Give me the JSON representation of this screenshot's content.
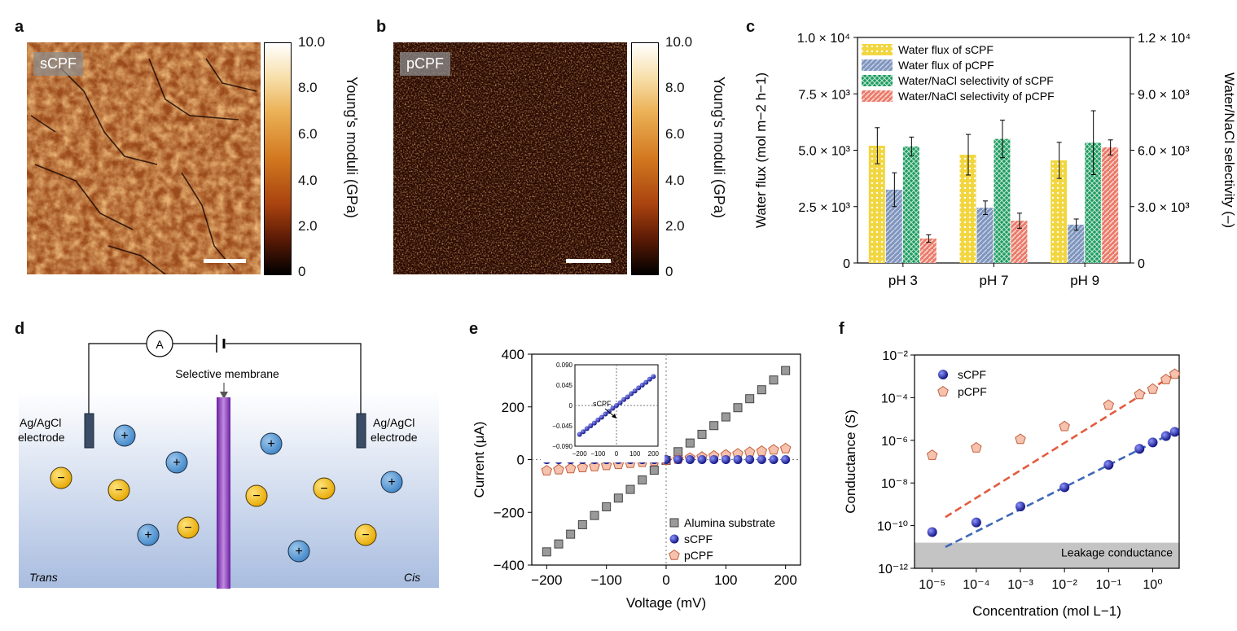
{
  "panels": {
    "a": "a",
    "b": "b",
    "c": "c",
    "d": "d",
    "e": "e",
    "f": "f"
  },
  "afm": {
    "a_label": "sCPF",
    "b_label": "pCPF",
    "colorbar_ticks": [
      "10.0",
      "8.0",
      "6.0",
      "4.0",
      "2.0",
      "0"
    ],
    "colorbar_title": "Young's moduli (GPa)"
  },
  "panel_d": {
    "ammeter": "A",
    "membrane_label": "Selective membrane",
    "left_electrode": [
      "Ag/AgCl",
      "electrode"
    ],
    "right_electrode": [
      "Ag/AgCl",
      "electrode"
    ],
    "left_side": "Trans",
    "right_side": "Cis",
    "plus": "+",
    "minus": "−"
  },
  "chart_data": [
    {
      "id": "c",
      "type": "bar",
      "categories": [
        "pH 3",
        "pH 7",
        "pH 9"
      ],
      "ylabel_left": "Water flux (mol m−2 h−1)",
      "ylabel_right": "Water/NaCl selectivity (–)",
      "ylim_left": [
        0,
        10000
      ],
      "ylim_right": [
        0,
        12000
      ],
      "left_ticks": [
        "0",
        "2.5 × 10³",
        "5.0 × 10³",
        "7.5 × 10³",
        "1.0 × 10⁴"
      ],
      "right_ticks": [
        "0",
        "3.0 × 10³",
        "6.0 × 10³",
        "9.0 × 10³",
        "1.2 × 10⁴"
      ],
      "series": [
        {
          "name": "Water flux of sCPF",
          "axis": "left",
          "values": [
            5200,
            4800,
            4550
          ],
          "err": [
            800,
            900,
            800
          ],
          "color": "#f2d640"
        },
        {
          "name": "Water flux of pCPF",
          "axis": "left",
          "values": [
            3250,
            2450,
            1700
          ],
          "err": [
            750,
            300,
            250
          ],
          "color": "#7f95be"
        },
        {
          "name": "Water/NaCl selectivity of sCPF",
          "axis": "right",
          "values": [
            6200,
            6600,
            6400
          ],
          "err": [
            500,
            1000,
            1700
          ],
          "color": "#1e9b62"
        },
        {
          "name": "Water/NaCl selectivity of pCPF",
          "axis": "right",
          "values": [
            1300,
            2250,
            6150
          ],
          "err": [
            200,
            400,
            400
          ],
          "color": "#ea7a6a"
        }
      ]
    },
    {
      "id": "e",
      "type": "scatter",
      "xlabel": "Voltage (mV)",
      "ylabel": "Current (μA)",
      "xlim": [
        -225,
        225
      ],
      "ylim": [
        -400,
        400
      ],
      "xticks": [
        "−200",
        "−100",
        "0",
        "100",
        "200"
      ],
      "yticks": [
        "−400",
        "−200",
        "0",
        "200",
        "400"
      ],
      "x": [
        -200,
        -180,
        -160,
        -140,
        -120,
        -100,
        -80,
        -60,
        -40,
        -20,
        0,
        20,
        40,
        60,
        80,
        100,
        120,
        140,
        160,
        180,
        200
      ],
      "series": [
        {
          "name": "Alumina substrate",
          "marker": "square",
          "color": "#9a9a9a",
          "values": [
            -350,
            -320,
            -283,
            -247,
            -212,
            -179,
            -146,
            -113,
            -77,
            -40,
            -3,
            30,
            63,
            96,
            129,
            162,
            197,
            231,
            265,
            302,
            338
          ]
        },
        {
          "name": "sCPF",
          "marker": "sphere",
          "color": "#1a1ba0",
          "values": [
            0,
            0,
            0,
            0,
            0,
            0,
            0,
            0,
            0,
            0,
            0,
            0,
            0,
            0,
            0,
            0,
            0,
            0,
            0,
            0,
            0
          ]
        },
        {
          "name": "pCPF",
          "marker": "pentagon",
          "color": "#f6c2ae",
          "values": [
            -42,
            -38,
            -34,
            -30,
            -26,
            -22,
            -18,
            -14,
            -10,
            -6,
            -2,
            2,
            6,
            10,
            14,
            18,
            22,
            28,
            32,
            37,
            42
          ]
        }
      ],
      "inset": {
        "label": "sCPF",
        "xticks": [
          "−200",
          "−100",
          "0",
          "100",
          "200"
        ],
        "yticks": [
          "0.090",
          "0.045",
          "0",
          "−0.045",
          "−0.090"
        ],
        "xlim": [
          -225,
          225
        ],
        "ylim": [
          -0.09,
          0.09
        ],
        "x": [
          -200,
          -180,
          -160,
          -140,
          -120,
          -100,
          -80,
          -60,
          -40,
          -20,
          0,
          20,
          40,
          60,
          80,
          100,
          120,
          140,
          160,
          180,
          200
        ],
        "values": [
          -0.064,
          -0.058,
          -0.051,
          -0.045,
          -0.039,
          -0.032,
          -0.026,
          -0.019,
          -0.013,
          -0.006,
          0,
          0.006,
          0.013,
          0.019,
          0.026,
          0.032,
          0.039,
          0.045,
          0.051,
          0.058,
          0.064
        ]
      }
    },
    {
      "id": "f",
      "type": "scatter",
      "xlabel": "Concentration (mol L−1)",
      "ylabel": "Conductance (S)",
      "xscale": "log",
      "yscale": "log",
      "xlim_exp": [
        -5.4,
        0.6
      ],
      "ylim_exp": [
        -12,
        -2
      ],
      "xticks": [
        "10⁻⁵",
        "10⁻⁴",
        "10⁻³",
        "10⁻²",
        "10⁻¹",
        "10⁰"
      ],
      "yticks": [
        "10⁻²",
        "10⁻⁴",
        "10⁻⁶",
        "10⁻⁸",
        "10⁻¹⁰",
        "10⁻¹²"
      ],
      "leakage_label": "Leakage conductance",
      "series": [
        {
          "name": "sCPF",
          "marker": "sphere",
          "color": "#1a1ba0",
          "x": [
            -5,
            -4,
            -3,
            -2,
            -1,
            -0.3,
            0,
            0.3,
            0.5
          ],
          "values": [
            -10.3,
            -9.85,
            -9.1,
            -8.2,
            -7.15,
            -6.4,
            -6.1,
            -5.8,
            -5.6
          ]
        },
        {
          "name": "pCPF",
          "marker": "pentagon",
          "color": "#f6c2ae",
          "x": [
            -5,
            -4,
            -3,
            -2,
            -1,
            -0.3,
            0,
            0.3,
            0.5
          ],
          "values": [
            -6.7,
            -6.35,
            -5.95,
            -5.35,
            -4.35,
            -3.85,
            -3.6,
            -3.15,
            -2.9
          ]
        }
      ],
      "fits": [
        {
          "series": "sCPF",
          "color": "#3f68b8",
          "x": [
            -4.7,
            0.5
          ],
          "values": [
            -11,
            -5.6
          ]
        },
        {
          "series": "pCPF",
          "color": "#e35b3e",
          "x": [
            -4.7,
            0.5
          ],
          "values": [
            -9.6,
            -2.9
          ]
        }
      ]
    }
  ]
}
